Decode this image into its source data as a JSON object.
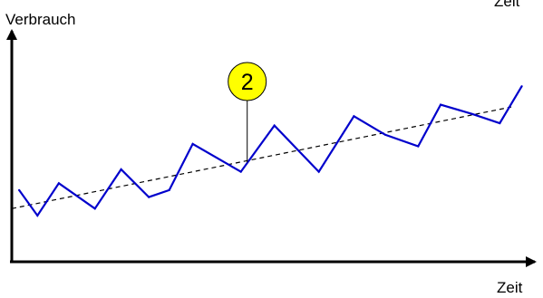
{
  "chart_data": {
    "type": "line",
    "title": "",
    "ylabel": "Verbrauch",
    "xlabel": "Zeit",
    "x_range": [
      0,
      100
    ],
    "y_range": [
      0,
      100
    ],
    "grid": false,
    "legend": "none",
    "series": [
      {
        "values": [
          {
            "x": 1.4,
            "y": 31
          },
          {
            "x": 4.9,
            "y": 20
          },
          {
            "x": 9.0,
            "y": 34
          },
          {
            "x": 15.9,
            "y": 23
          },
          {
            "x": 20.9,
            "y": 40
          },
          {
            "x": 26.2,
            "y": 28
          },
          {
            "x": 30.1,
            "y": 31
          },
          {
            "x": 34.6,
            "y": 51
          },
          {
            "x": 43.8,
            "y": 39
          },
          {
            "x": 50.2,
            "y": 59
          },
          {
            "x": 58.7,
            "y": 39
          },
          {
            "x": 65.4,
            "y": 63
          },
          {
            "x": 71.4,
            "y": 55
          },
          {
            "x": 77.7,
            "y": 50
          },
          {
            "x": 82.0,
            "y": 68
          },
          {
            "x": 88.0,
            "y": 64
          },
          {
            "x": 93.3,
            "y": 60
          },
          {
            "x": 97.5,
            "y": 76
          }
        ],
        "color": "#0000cc"
      }
    ],
    "trendline": {
      "values": [
        {
          "x": 0,
          "y": 23
        },
        {
          "x": 95.5,
          "y": 67
        }
      ],
      "color": "#000000",
      "style": "dashed"
    },
    "annotations": [
      {
        "text": "2",
        "x": 45.0,
        "y": 43,
        "fill": "#ffff00"
      }
    ],
    "stray_labels": [
      {
        "text": "Zeit"
      }
    ]
  }
}
